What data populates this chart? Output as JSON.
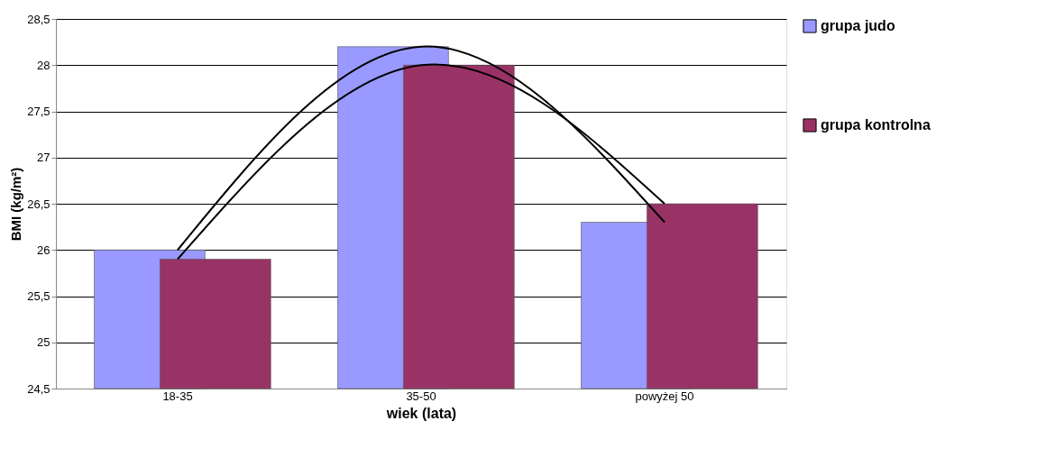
{
  "chart_data": {
    "type": "bar",
    "xlabel": "wiek (lata)",
    "ylabel": "BMI (kg/m²)",
    "categories": [
      "18-35",
      "35-50",
      "powyżej 50"
    ],
    "series": [
      {
        "name": "grupa judo",
        "color": "#9999ff",
        "values": [
          26.0,
          28.2,
          26.3
        ]
      },
      {
        "name": "grupa kontrolna",
        "color": "#993366",
        "values": [
          25.9,
          28.0,
          26.5
        ]
      },
      {
        "type": "line",
        "color": "#000000",
        "values": [
          26.0,
          28.2,
          26.3
        ]
      },
      {
        "type": "line",
        "color": "#000000",
        "values": [
          25.9,
          28.0,
          26.5
        ]
      }
    ],
    "ylim": [
      24.5,
      28.5
    ],
    "yticks": [
      {
        "value": 24.5,
        "label": "24,5"
      },
      25,
      {
        "value": 25.5,
        "label": "25,5"
      },
      26,
      {
        "value": 26.5,
        "label": "26,5"
      },
      27,
      {
        "value": 27.5,
        "label": "27,5"
      },
      28,
      {
        "value": 28.5,
        "label": "28,5"
      }
    ],
    "grid": "y",
    "legend": "right"
  }
}
